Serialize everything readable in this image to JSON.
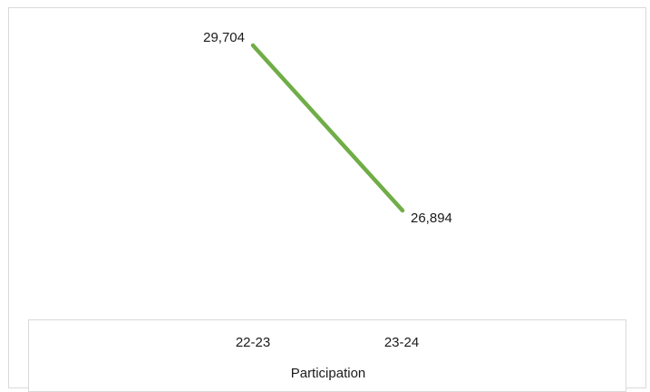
{
  "chart_data": {
    "type": "line",
    "categories": [
      "22-23",
      "23-24"
    ],
    "series": [
      {
        "values": [
          29704,
          26894
        ],
        "color": "#70ad47"
      }
    ],
    "data_labels": [
      "29,704",
      "26,894"
    ],
    "xlabel": "Participation",
    "ylabel": "",
    "ylim": [
      24000,
      30000
    ],
    "grid": false,
    "legend": "none"
  }
}
